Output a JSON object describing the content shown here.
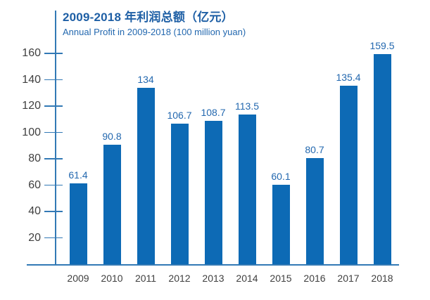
{
  "chart": {
    "title": "2009-2018 年利润总额（亿元）",
    "subtitle": "Annual Profit in 2009-2018 (100 million yuan)"
  },
  "chart_data": {
    "type": "bar",
    "title": "2009-2018 年利润总额（亿元）",
    "subtitle": "Annual Profit in 2009-2018 (100 million yuan)",
    "categories": [
      "2009",
      "2010",
      "2011",
      "2012",
      "2013",
      "2014",
      "2015",
      "2016",
      "2017",
      "2018"
    ],
    "values": [
      61.4,
      90.8,
      134,
      106.7,
      108.7,
      113.5,
      60.1,
      80.7,
      135.4,
      159.5
    ],
    "value_labels": [
      "61.4",
      "90.8",
      "134",
      "106.7",
      "108.7",
      "113.5",
      "60.1",
      "80.7",
      "135.4",
      "159.5"
    ],
    "xlabel": "",
    "ylabel": "",
    "y_ticks": [
      20,
      40,
      60,
      80,
      100,
      120,
      140,
      160
    ],
    "ylim": [
      0,
      170
    ],
    "grid": false,
    "legend": false,
    "colors": {
      "bar": "#0d6ab5",
      "axis": "#3279b5",
      "title": "#1e5fa5",
      "subtitle": "#2368af",
      "value_label": "#2368af",
      "tick_label": "#3f3f3f",
      "category_label": "#3f3f3f",
      "background": "#ffffff"
    }
  }
}
